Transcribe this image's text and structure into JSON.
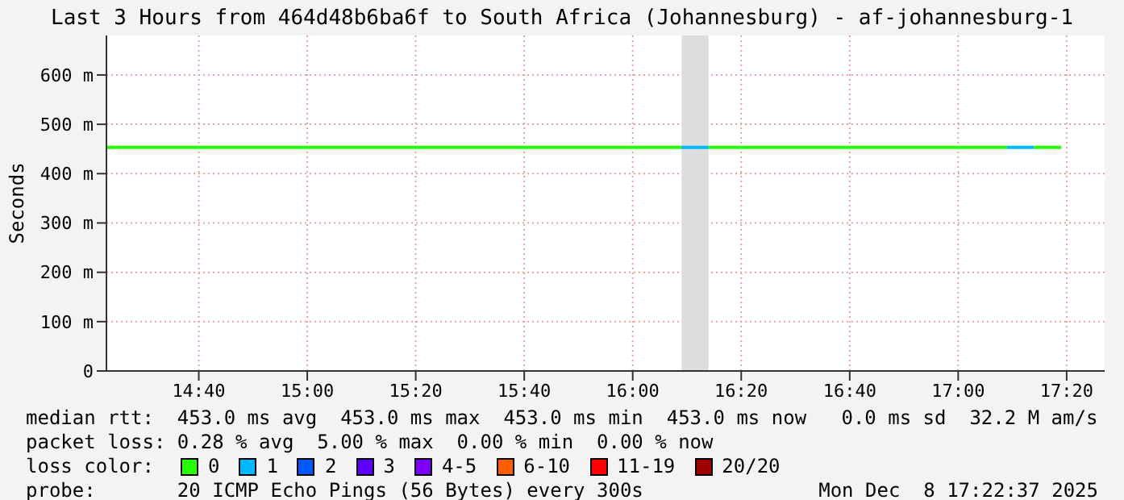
{
  "chart_data": {
    "type": "line",
    "title": "Last 3 Hours from 464d48b6ba6f to South Africa (Johannesburg) - af-johannesburg-1",
    "ylabel": "Seconds",
    "legend_title": "loss color:",
    "xlim": [
      14.383,
      17.45
    ],
    "xticks": [
      {
        "value": 14.6667,
        "label": "14:40"
      },
      {
        "value": 15,
        "label": "15:00"
      },
      {
        "value": 15.3333,
        "label": "15:20"
      },
      {
        "value": 15.6667,
        "label": "15:40"
      },
      {
        "value": 16,
        "label": "16:00"
      },
      {
        "value": 16.3333,
        "label": "16:20"
      },
      {
        "value": 16.6667,
        "label": "16:40"
      },
      {
        "value": 17,
        "label": "17:00"
      },
      {
        "value": 17.3333,
        "label": "17:20"
      }
    ],
    "ylim": [
      0,
      680
    ],
    "yticks": [
      0,
      {
        "value": 100,
        "label": "100 m"
      },
      {
        "value": 200,
        "label": "200 m"
      },
      {
        "value": 300,
        "label": "300 m"
      },
      {
        "value": 400,
        "label": "400 m"
      },
      {
        "value": 500,
        "label": "500 m"
      },
      {
        "value": 600,
        "label": "600 m"
      }
    ],
    "series": [
      {
        "name": "0",
        "color": "#26ff00",
        "x": [
          14.383,
          16.15
        ],
        "values": [
          453,
          453
        ]
      },
      {
        "color": "#26ff00",
        "x": [
          16.233,
          17.15
        ],
        "values": [
          453,
          453
        ]
      },
      {
        "color": "#26ff00",
        "x": [
          17.233,
          17.317
        ],
        "values": [
          453,
          453
        ]
      },
      {
        "name": "1",
        "color": "#00b8ff",
        "x": [
          16.15,
          16.233
        ],
        "values": [
          453,
          453
        ]
      },
      {
        "color": "#00b8ff",
        "x": [
          17.15,
          17.233
        ],
        "values": [
          453,
          453
        ]
      },
      {
        "name": "2",
        "color": "#0059ff"
      },
      {
        "name": "3",
        "color": "#5e00ff"
      },
      {
        "name": "4-5",
        "color": "#7e00ff"
      },
      {
        "name": "6-10",
        "color": "#ff5e00"
      },
      {
        "name": "11-19",
        "color": "#ff0000"
      },
      {
        "name": "20/20",
        "color": "#a10000"
      }
    ],
    "bands": [
      {
        "axis": "x",
        "from": 16.15,
        "to": 16.233,
        "color": "#dddddd"
      }
    ],
    "annotations": [
      "median rtt:  453.0 ms avg  453.0 ms max  453.0 ms min  453.0 ms now   0.0 ms sd  32.2 M am/s",
      "packet loss: 0.28 % avg  5.00 % max  0.00 % min  0.00 % now",
      "probe:       20 ICMP Echo Pings (56 Bytes) every 300s",
      "Mon Dec  8 17:22:37 2025"
    ],
    "grid": true,
    "legend": "bottom",
    "marker": "none",
    "line_style": "solid"
  }
}
